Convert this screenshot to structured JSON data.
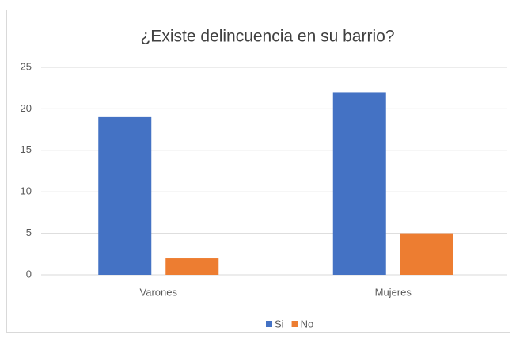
{
  "chart_data": {
    "type": "bar",
    "title": "¿Existe delincuencia en su barrio?",
    "categories": [
      "Varones",
      "Mujeres"
    ],
    "series": [
      {
        "name": "Si",
        "color": "#4472c4",
        "values": [
          19,
          22
        ]
      },
      {
        "name": "No",
        "color": "#ed7d31",
        "values": [
          2,
          5
        ]
      }
    ],
    "ylim": [
      0,
      25
    ],
    "yticks": [
      0,
      5,
      10,
      15,
      20,
      25
    ],
    "grid": true,
    "legend": "bottom"
  }
}
